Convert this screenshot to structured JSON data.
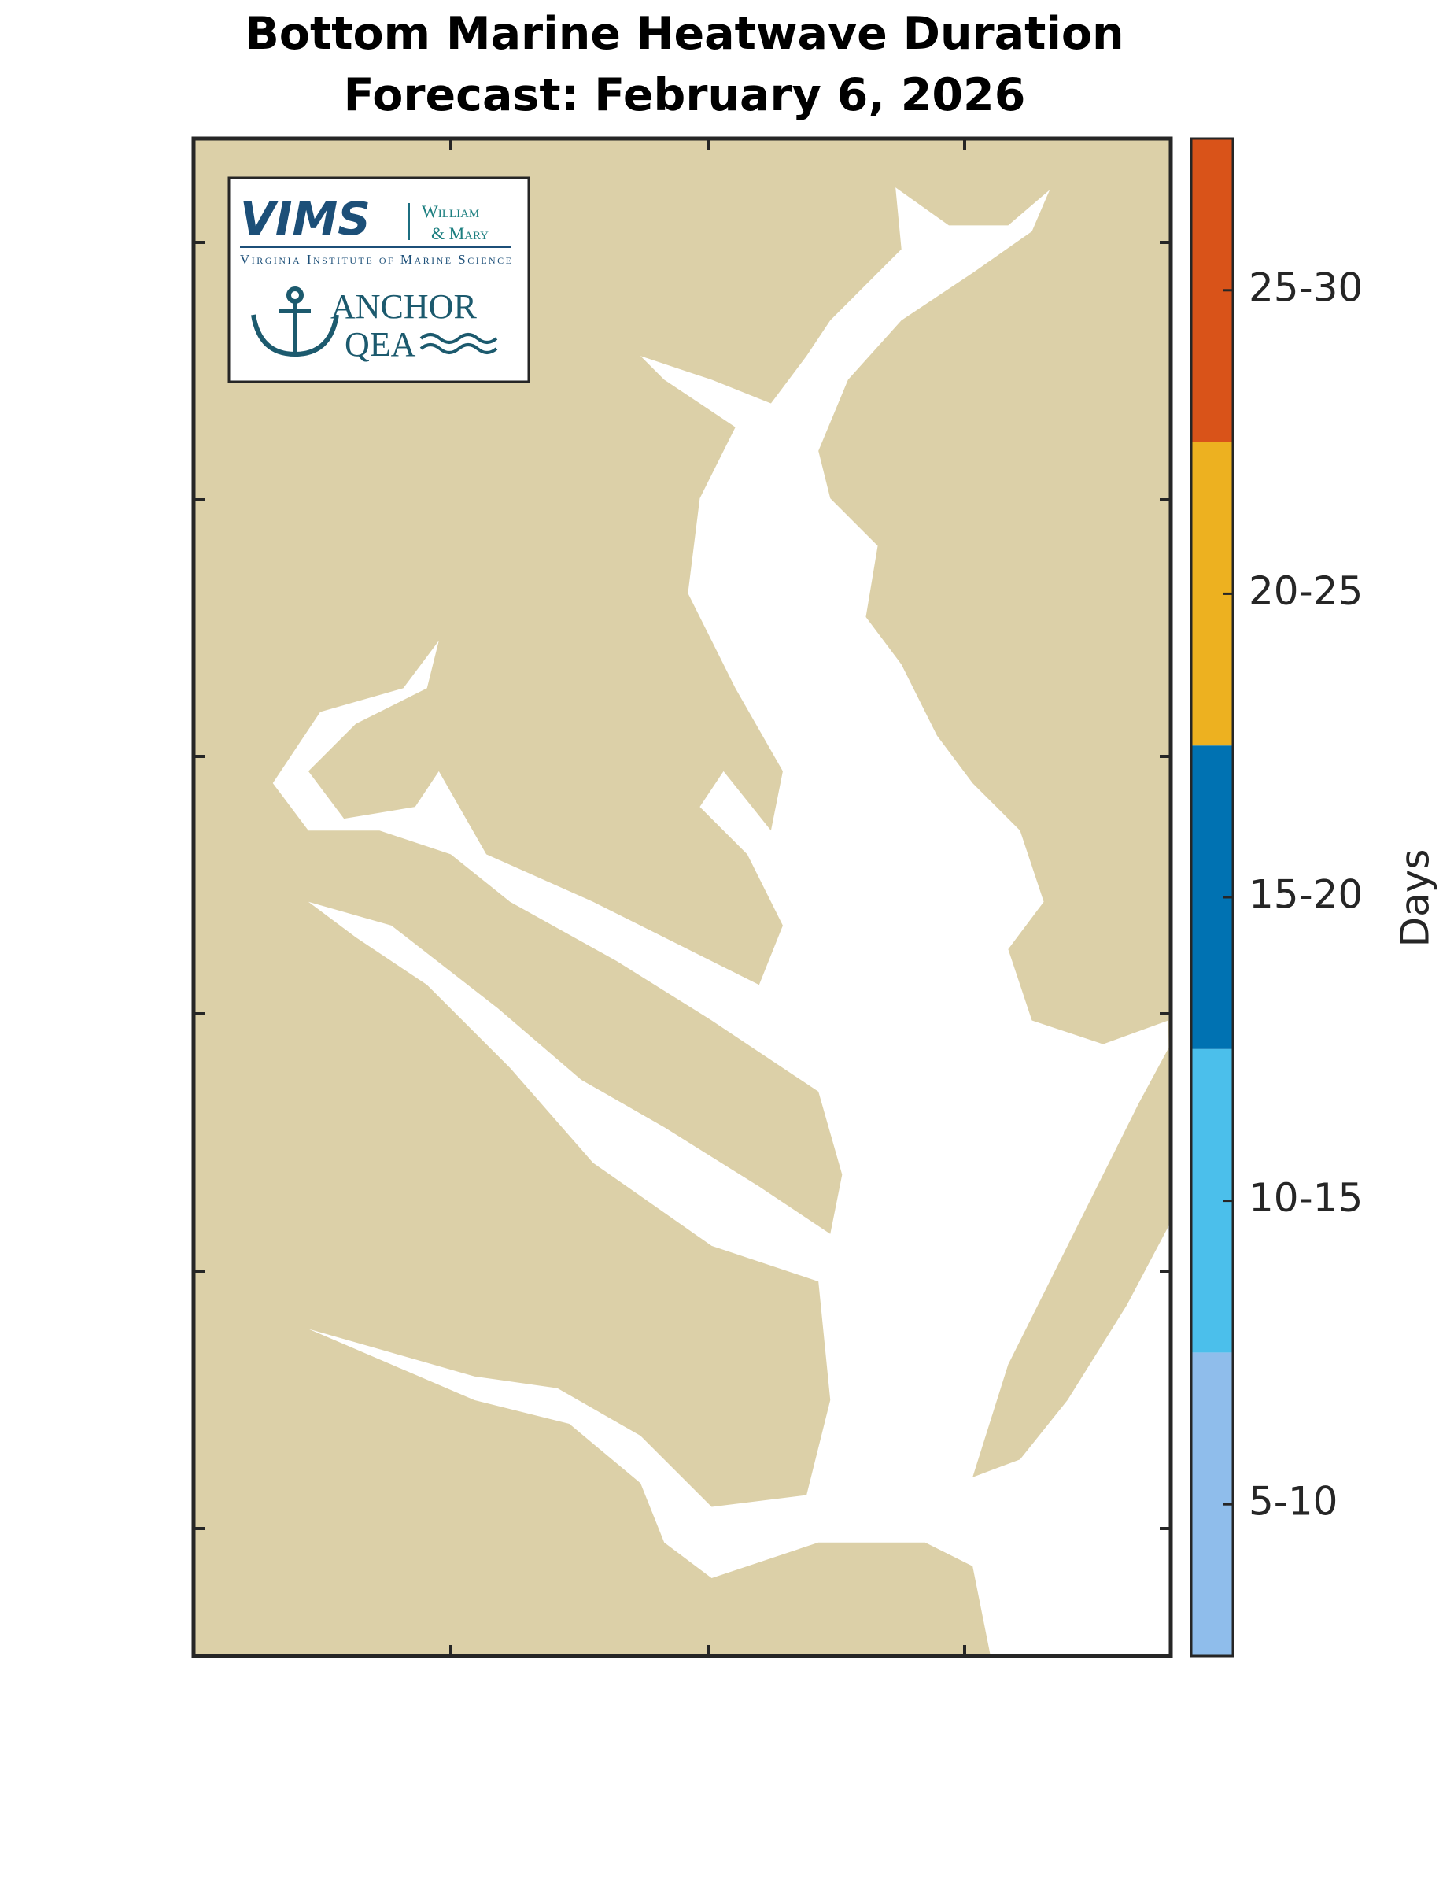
{
  "title": [
    "Bottom Marine Heatwave Duration",
    "Forecast: February 6, 2026"
  ],
  "colorbar": {
    "label": "Days",
    "bins": [
      {
        "label": "5-10",
        "color": "#8fbdeb"
      },
      {
        "label": "10-15",
        "color": "#4bbfeb"
      },
      {
        "label": "15-20",
        "color": "#0072b2"
      },
      {
        "label": "20-25",
        "color": "#edb120"
      },
      {
        "label": "25-30",
        "color": "#d95319"
      }
    ]
  },
  "logo": {
    "vims": "VIMS",
    "william": "William",
    "mary": "& Mary",
    "institute": "Virginia Institute of Marine Science",
    "anchor": "ANCHOR",
    "qea": "QEA"
  }
}
